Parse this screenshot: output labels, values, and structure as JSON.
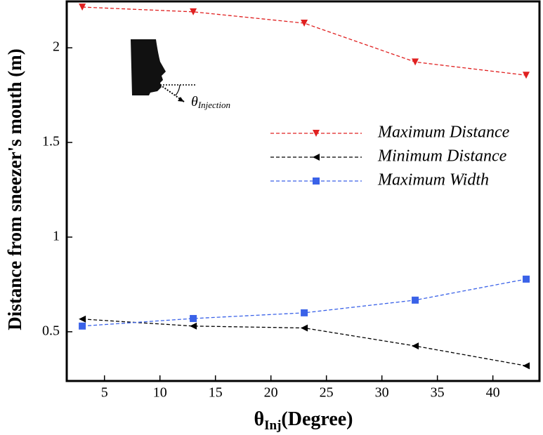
{
  "chart_data": {
    "type": "line",
    "x_label": {
      "symbol": "θ",
      "subscript": "Inj",
      "text": "(Degree)"
    },
    "y_label": "Distance from sneezer's mouth (m)",
    "annotation": {
      "symbol": "θ",
      "subscript": "Injection"
    },
    "x": [
      3,
      13,
      23,
      33,
      43
    ],
    "series": [
      {
        "name": "Maximum Distance",
        "color": "#e02020",
        "marker": "triangle-down",
        "values": [
          2.215,
          2.19,
          2.13,
          1.925,
          1.855
        ]
      },
      {
        "name": "Minimum Distance",
        "color": "#000000",
        "marker": "triangle-left",
        "values": [
          0.567,
          0.53,
          0.52,
          0.425,
          0.32
        ]
      },
      {
        "name": "Maximum Width",
        "color": "#3a62e8",
        "marker": "square",
        "values": [
          0.53,
          0.57,
          0.6,
          0.667,
          0.778
        ]
      }
    ],
    "xlim": [
      1.6,
      44.2
    ],
    "ylim": [
      0.24,
      2.245
    ],
    "xticks": [
      5,
      10,
      15,
      20,
      25,
      30,
      35,
      40
    ],
    "yticks": [
      0.5,
      1,
      1.5,
      2
    ],
    "legend": "upper-right"
  }
}
